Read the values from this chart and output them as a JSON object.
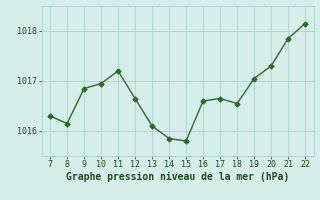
{
  "x": [
    7,
    8,
    9,
    10,
    11,
    12,
    13,
    14,
    15,
    16,
    17,
    18,
    19,
    20,
    21,
    22
  ],
  "y": [
    1016.3,
    1016.15,
    1016.85,
    1016.95,
    1017.2,
    1016.65,
    1016.1,
    1015.85,
    1015.8,
    1016.6,
    1016.65,
    1016.55,
    1017.05,
    1017.3,
    1017.85,
    1018.15
  ],
  "line_color": "#2d6a2d",
  "marker": "D",
  "marker_size": 2.5,
  "background_color": "#d6eeea",
  "grid_color": "#aad4cc",
  "xlabel": "Graphe pression niveau de la mer (hPa)",
  "xlabel_color": "#1a4d1a",
  "tick_color": "#1a4d1a",
  "label_color": "#1a4d1a",
  "ylim": [
    1015.5,
    1018.5
  ],
  "yticks": [
    1016,
    1017,
    1018
  ],
  "xlim": [
    6.5,
    22.5
  ],
  "xticks": [
    7,
    8,
    9,
    10,
    11,
    12,
    13,
    14,
    15,
    16,
    17,
    18,
    19,
    20,
    21,
    22
  ],
  "linewidth": 1.0,
  "tick_fontsize": 6,
  "xlabel_fontsize": 7
}
